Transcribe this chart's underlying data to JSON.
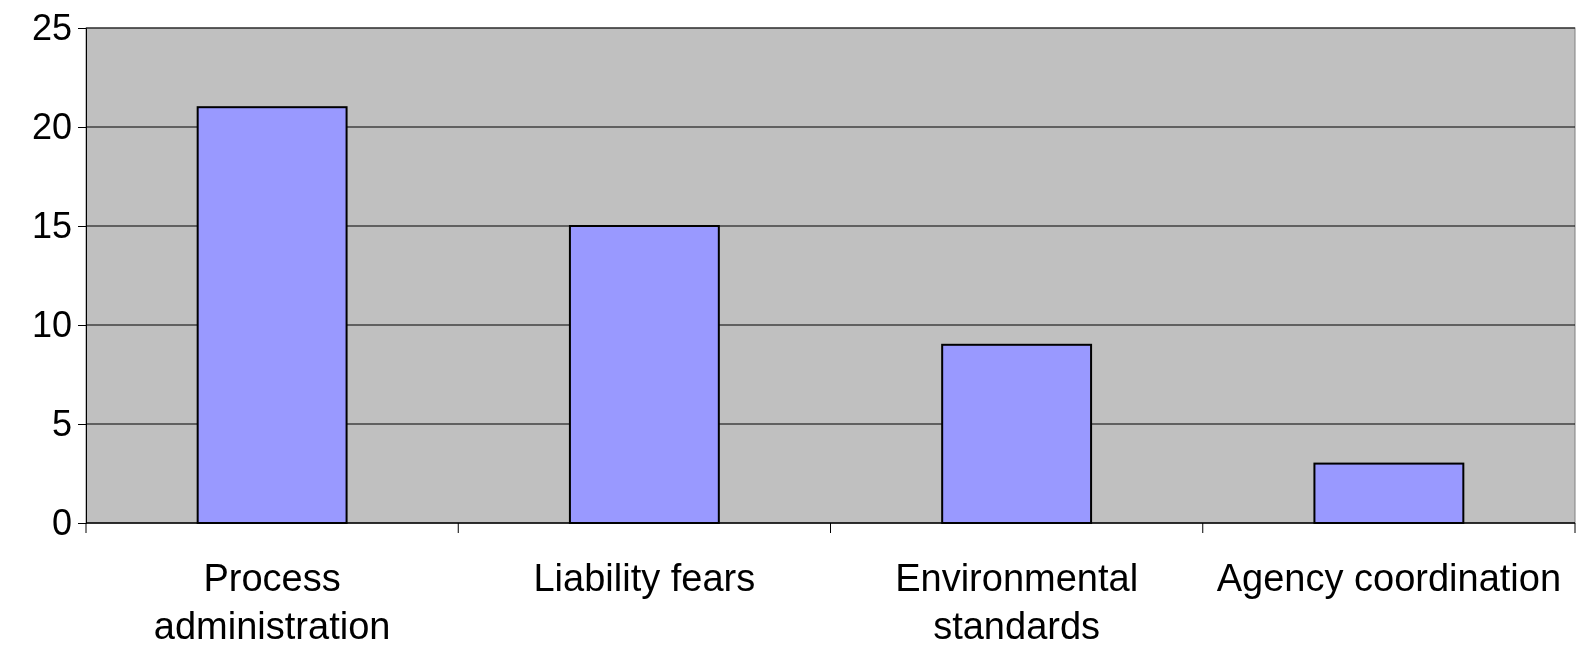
{
  "chart_data": {
    "type": "bar",
    "categories": [
      "Process administration",
      "Liability fears",
      "Environmental standards",
      "Agency coordination"
    ],
    "values": [
      21,
      15,
      9,
      3
    ],
    "color": "#9999ff",
    "ylim": [
      0,
      25
    ],
    "yticks": [
      0,
      5,
      10,
      15,
      20,
      25
    ],
    "grid": "y"
  }
}
